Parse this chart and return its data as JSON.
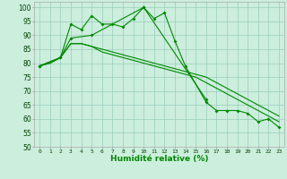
{
  "x": [
    0,
    1,
    2,
    3,
    4,
    5,
    6,
    7,
    8,
    9,
    10,
    11,
    12,
    13,
    14,
    15,
    16,
    17,
    18,
    19,
    20,
    21,
    22,
    23
  ],
  "line1": [
    79,
    null,
    82,
    89,
    null,
    90,
    null,
    null,
    null,
    null,
    100,
    96,
    98,
    88,
    79,
    null,
    66,
    63,
    63,
    63,
    62,
    59,
    60,
    57
  ],
  "line2": [
    79,
    null,
    82,
    94,
    92,
    97,
    94,
    94,
    93,
    96,
    100,
    null,
    null,
    null,
    null,
    null,
    67,
    null,
    null,
    null,
    null,
    null,
    null,
    null
  ],
  "line3": [
    79,
    80,
    82,
    87,
    87,
    86,
    85,
    84,
    83,
    82,
    81,
    80,
    79,
    78,
    77,
    76,
    75,
    73,
    71,
    69,
    67,
    65,
    63,
    61
  ],
  "line4": [
    79,
    80,
    82,
    87,
    87,
    86,
    84,
    83,
    82,
    81,
    80,
    79,
    78,
    77,
    76,
    75,
    73,
    71,
    69,
    67,
    65,
    63,
    61,
    59
  ],
  "xlabel": "Humidité relative (%)",
  "ylim": [
    50,
    102
  ],
  "xlim": [
    -0.5,
    23.5
  ],
  "yticks": [
    50,
    55,
    60,
    65,
    70,
    75,
    80,
    85,
    90,
    95,
    100
  ],
  "bg_color": "#cceedd",
  "grid_color": "#99ccbb",
  "line_color": "#008800"
}
